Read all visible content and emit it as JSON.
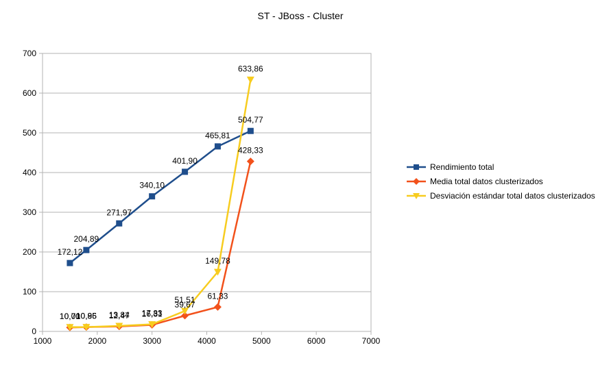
{
  "chart_data": {
    "type": "line",
    "title": "ST - JBoss - Cluster",
    "xlim": [
      1000,
      7000
    ],
    "ylim": [
      0,
      700
    ],
    "xticks": [
      1000,
      2000,
      3000,
      4000,
      5000,
      6000,
      7000
    ],
    "yticks": [
      0,
      100,
      200,
      300,
      400,
      500,
      600,
      700
    ],
    "grid": "horizontal",
    "legend": "right",
    "series": [
      {
        "name": "Rendimiento total",
        "color": "#1f4e8c",
        "marker": "square",
        "x": [
          1500,
          1800,
          2400,
          3000,
          3600,
          4200,
          4800
        ],
        "y": [
          172.12,
          204.89,
          271.97,
          340.1,
          401.9,
          465.81,
          504.77
        ],
        "labels": [
          "172,12",
          "204,89",
          "271,97",
          "340,10",
          "401,90",
          "465,81",
          "504,77"
        ]
      },
      {
        "name": "Media total datos clusterizados",
        "color": "#f2511b",
        "marker": "diamond",
        "x": [
          1500,
          1800,
          2400,
          3000,
          3600,
          4200,
          4800
        ],
        "y": [
          10.0,
          10.86,
          12.47,
          16.31,
          39.67,
          61.33,
          428.33
        ],
        "labels": [
          "10,00",
          "10,86",
          "12,47",
          "16,31",
          "39,67",
          "61,33",
          "428,33"
        ]
      },
      {
        "name": "Desviación estándar total datos clusterizados",
        "color": "#f7cc1f",
        "marker": "triangle-down",
        "x": [
          1500,
          1800,
          2400,
          3000,
          3600,
          4200,
          4800
        ],
        "y": [
          10.71,
          10.95,
          13.84,
          17.83,
          51.51,
          149.78,
          633.86
        ],
        "labels": [
          "10,71",
          "10,95",
          "13,84",
          "17,83",
          "51,51",
          "149,78",
          "633,86"
        ]
      }
    ]
  }
}
